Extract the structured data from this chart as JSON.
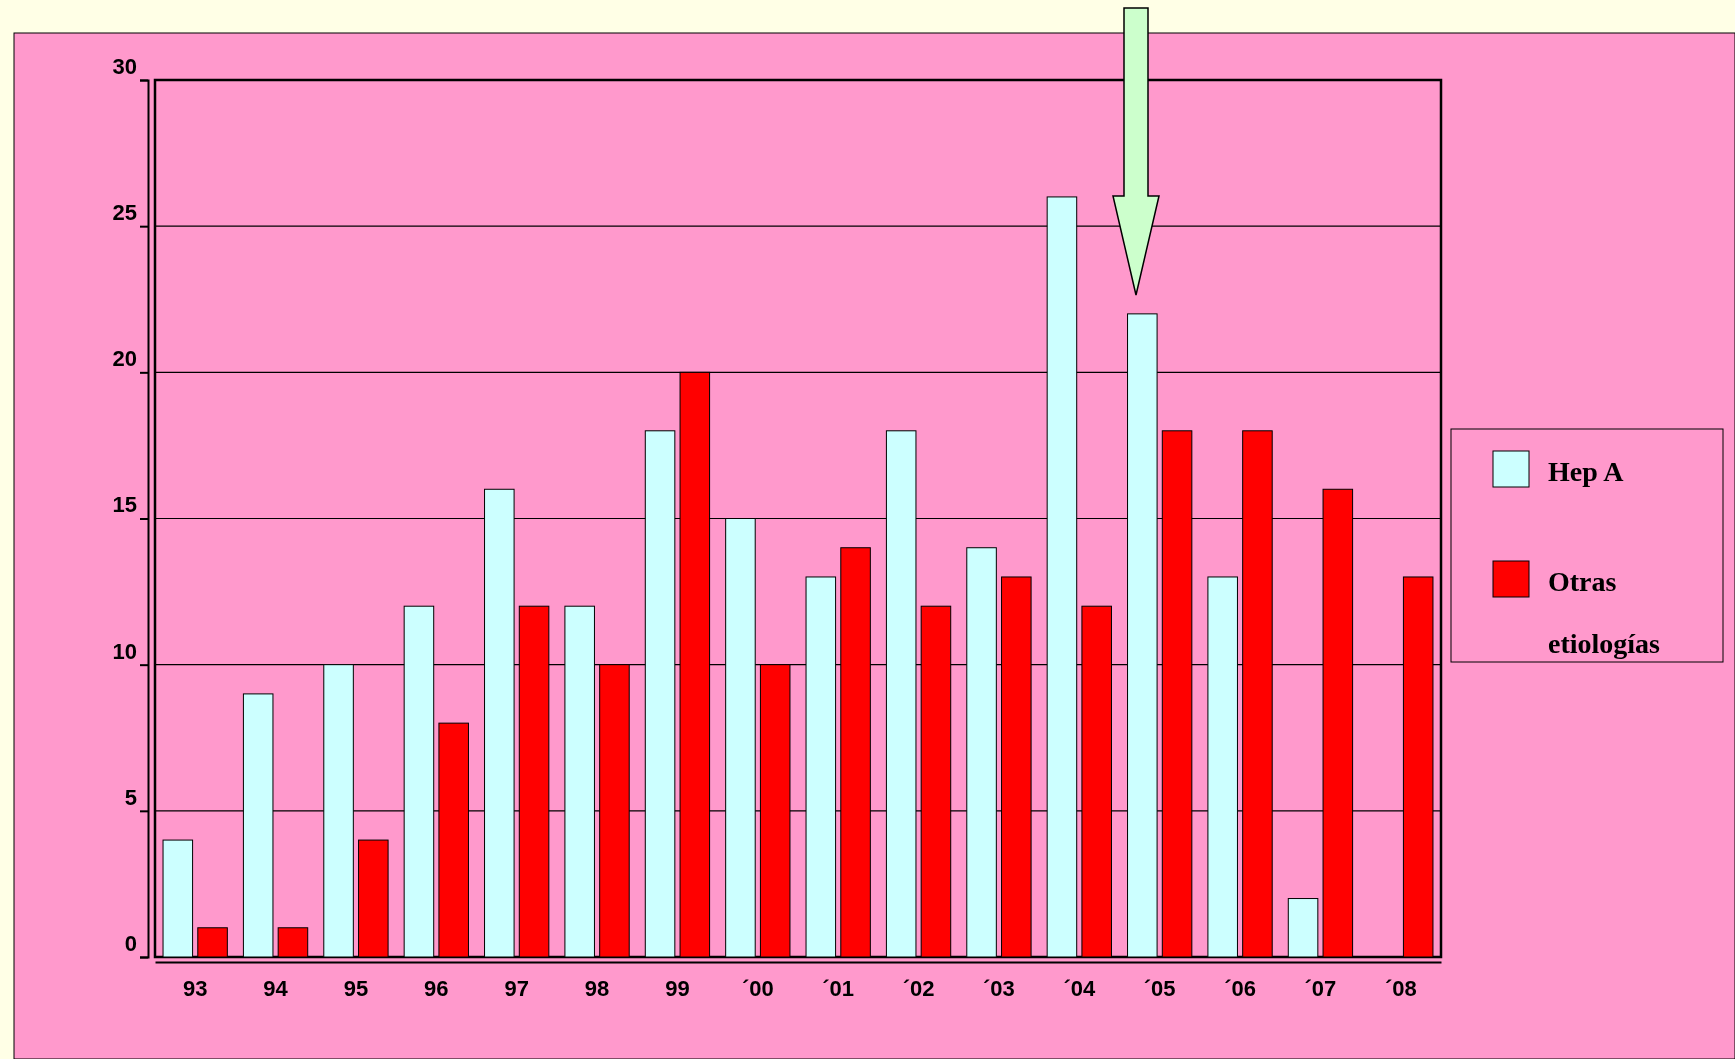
{
  "chart_data": {
    "type": "bar",
    "categories": [
      "93",
      "94",
      "95",
      "96",
      "97",
      "98",
      "99",
      "´00",
      "´01",
      "´02",
      "´03",
      "´04",
      "´05",
      "´06",
      "´07",
      "´08"
    ],
    "series": [
      {
        "name": "Hep A",
        "color": "#ccffff",
        "values": [
          4,
          9,
          10,
          12,
          16,
          12,
          18,
          15,
          13,
          18,
          14,
          26,
          22,
          13,
          2,
          0
        ]
      },
      {
        "name": "Otras etiologías",
        "color": "#ff0000",
        "values": [
          1,
          1,
          4,
          8,
          12,
          10,
          20,
          10,
          14,
          12,
          13,
          12,
          18,
          18,
          16,
          13
        ]
      }
    ],
    "ylim": [
      0,
      30
    ],
    "yticks": [
      0,
      5,
      10,
      15,
      20,
      25,
      30
    ],
    "grid": "y",
    "legend": "right"
  }
}
